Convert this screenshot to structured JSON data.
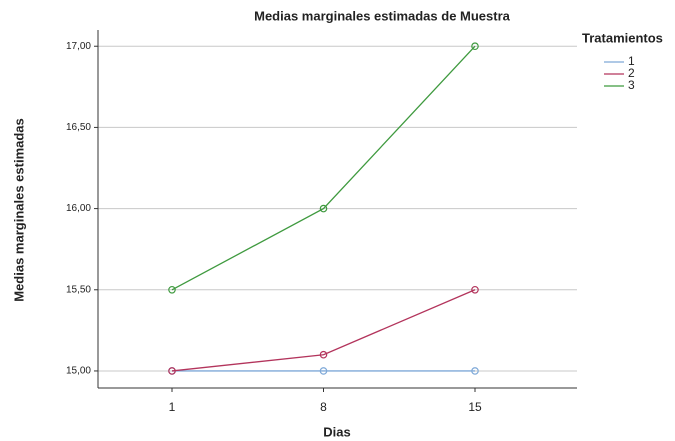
{
  "chart_data": {
    "type": "line",
    "title": "Medias marginales estimadas de Muestra",
    "x_label": "Dias",
    "y_label": "Medias marginales estimadas",
    "categories": [
      "1",
      "8",
      "15"
    ],
    "series": [
      {
        "name": "1",
        "color": "#7fa9d8",
        "values": [
          15,
          15,
          15
        ]
      },
      {
        "name": "2",
        "color": "#b3345c",
        "values": [
          15,
          15.1,
          15.5
        ]
      },
      {
        "name": "3",
        "color": "#3f9a3f",
        "values": [
          15.5,
          16,
          17
        ]
      }
    ],
    "legend_title": "Tratamientos",
    "legend": "top-right",
    "ylim": [
      14.895,
      17.1
    ],
    "yticks": [
      {
        "value": 15,
        "label": "15,00"
      },
      {
        "value": 15.5,
        "label": "15,50"
      },
      {
        "value": 16,
        "label": "16,00"
      },
      {
        "value": 16.5,
        "label": "16,50"
      },
      {
        "value": 17,
        "label": "17,00"
      }
    ],
    "grid": true
  }
}
